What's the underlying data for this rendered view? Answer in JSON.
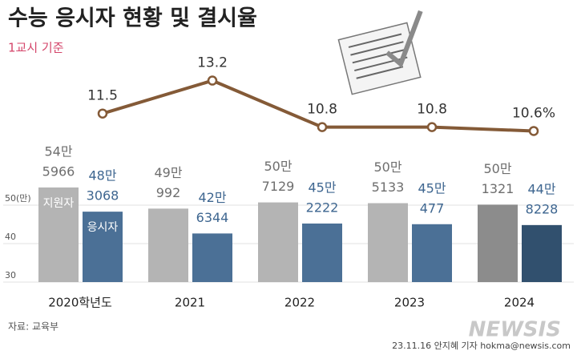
{
  "chart_data": {
    "type": "bar-line",
    "title": "수능 응시자 현황 및 결시율",
    "subtitle": "1교시 기준",
    "categories": [
      "2020학년도",
      "2021",
      "2022",
      "2023",
      "2024"
    ],
    "ylim": [
      30,
      60
    ],
    "yticks": [
      30,
      40,
      {
        "value": 50,
        "label": "50(만)"
      }
    ],
    "y2lim": [
      5,
      15
    ],
    "grid": true,
    "series": [
      {
        "name": "지원자",
        "colors": [
          "#b4b4b4",
          "#b4b4b4",
          "#b4b4b4",
          "#b4b4b4",
          "#8c8c8c"
        ],
        "label_color": "#6e6e6e",
        "values": [
          54.5966,
          49.0992,
          50.7129,
          50.5133,
          50.1321
        ],
        "value_labels": [
          [
            "54만",
            "5966"
          ],
          [
            "49만",
            "992"
          ],
          [
            "50만",
            "7129"
          ],
          [
            "50만",
            "5133"
          ],
          [
            "50만",
            "1321"
          ]
        ]
      },
      {
        "name": "응시자",
        "colors": [
          "#4b7096",
          "#4b7096",
          "#4b7096",
          "#4b7096",
          "#31506e"
        ],
        "label_color": "#3e6690",
        "values": [
          48.3068,
          42.6344,
          45.2222,
          45.0477,
          44.8228
        ],
        "value_labels": [
          [
            "48만",
            "3068"
          ],
          [
            "42만",
            "6344"
          ],
          [
            "45만",
            "2222"
          ],
          [
            "45만",
            "477"
          ],
          [
            "44만",
            "8228"
          ]
        ]
      },
      {
        "type": "line",
        "axis": "y2",
        "color": "#845a37",
        "label_color": "#333333",
        "values": [
          11.5,
          13.2,
          10.8,
          10.8,
          10.6
        ],
        "value_labels": [
          "11.5",
          "13.2",
          "10.8",
          "10.8",
          "10.6%"
        ]
      }
    ],
    "source": "자료: 교육부",
    "credit": "23.11.16 안지혜 기자 hokma@newsis.com",
    "watermark": "NEWSIS"
  }
}
